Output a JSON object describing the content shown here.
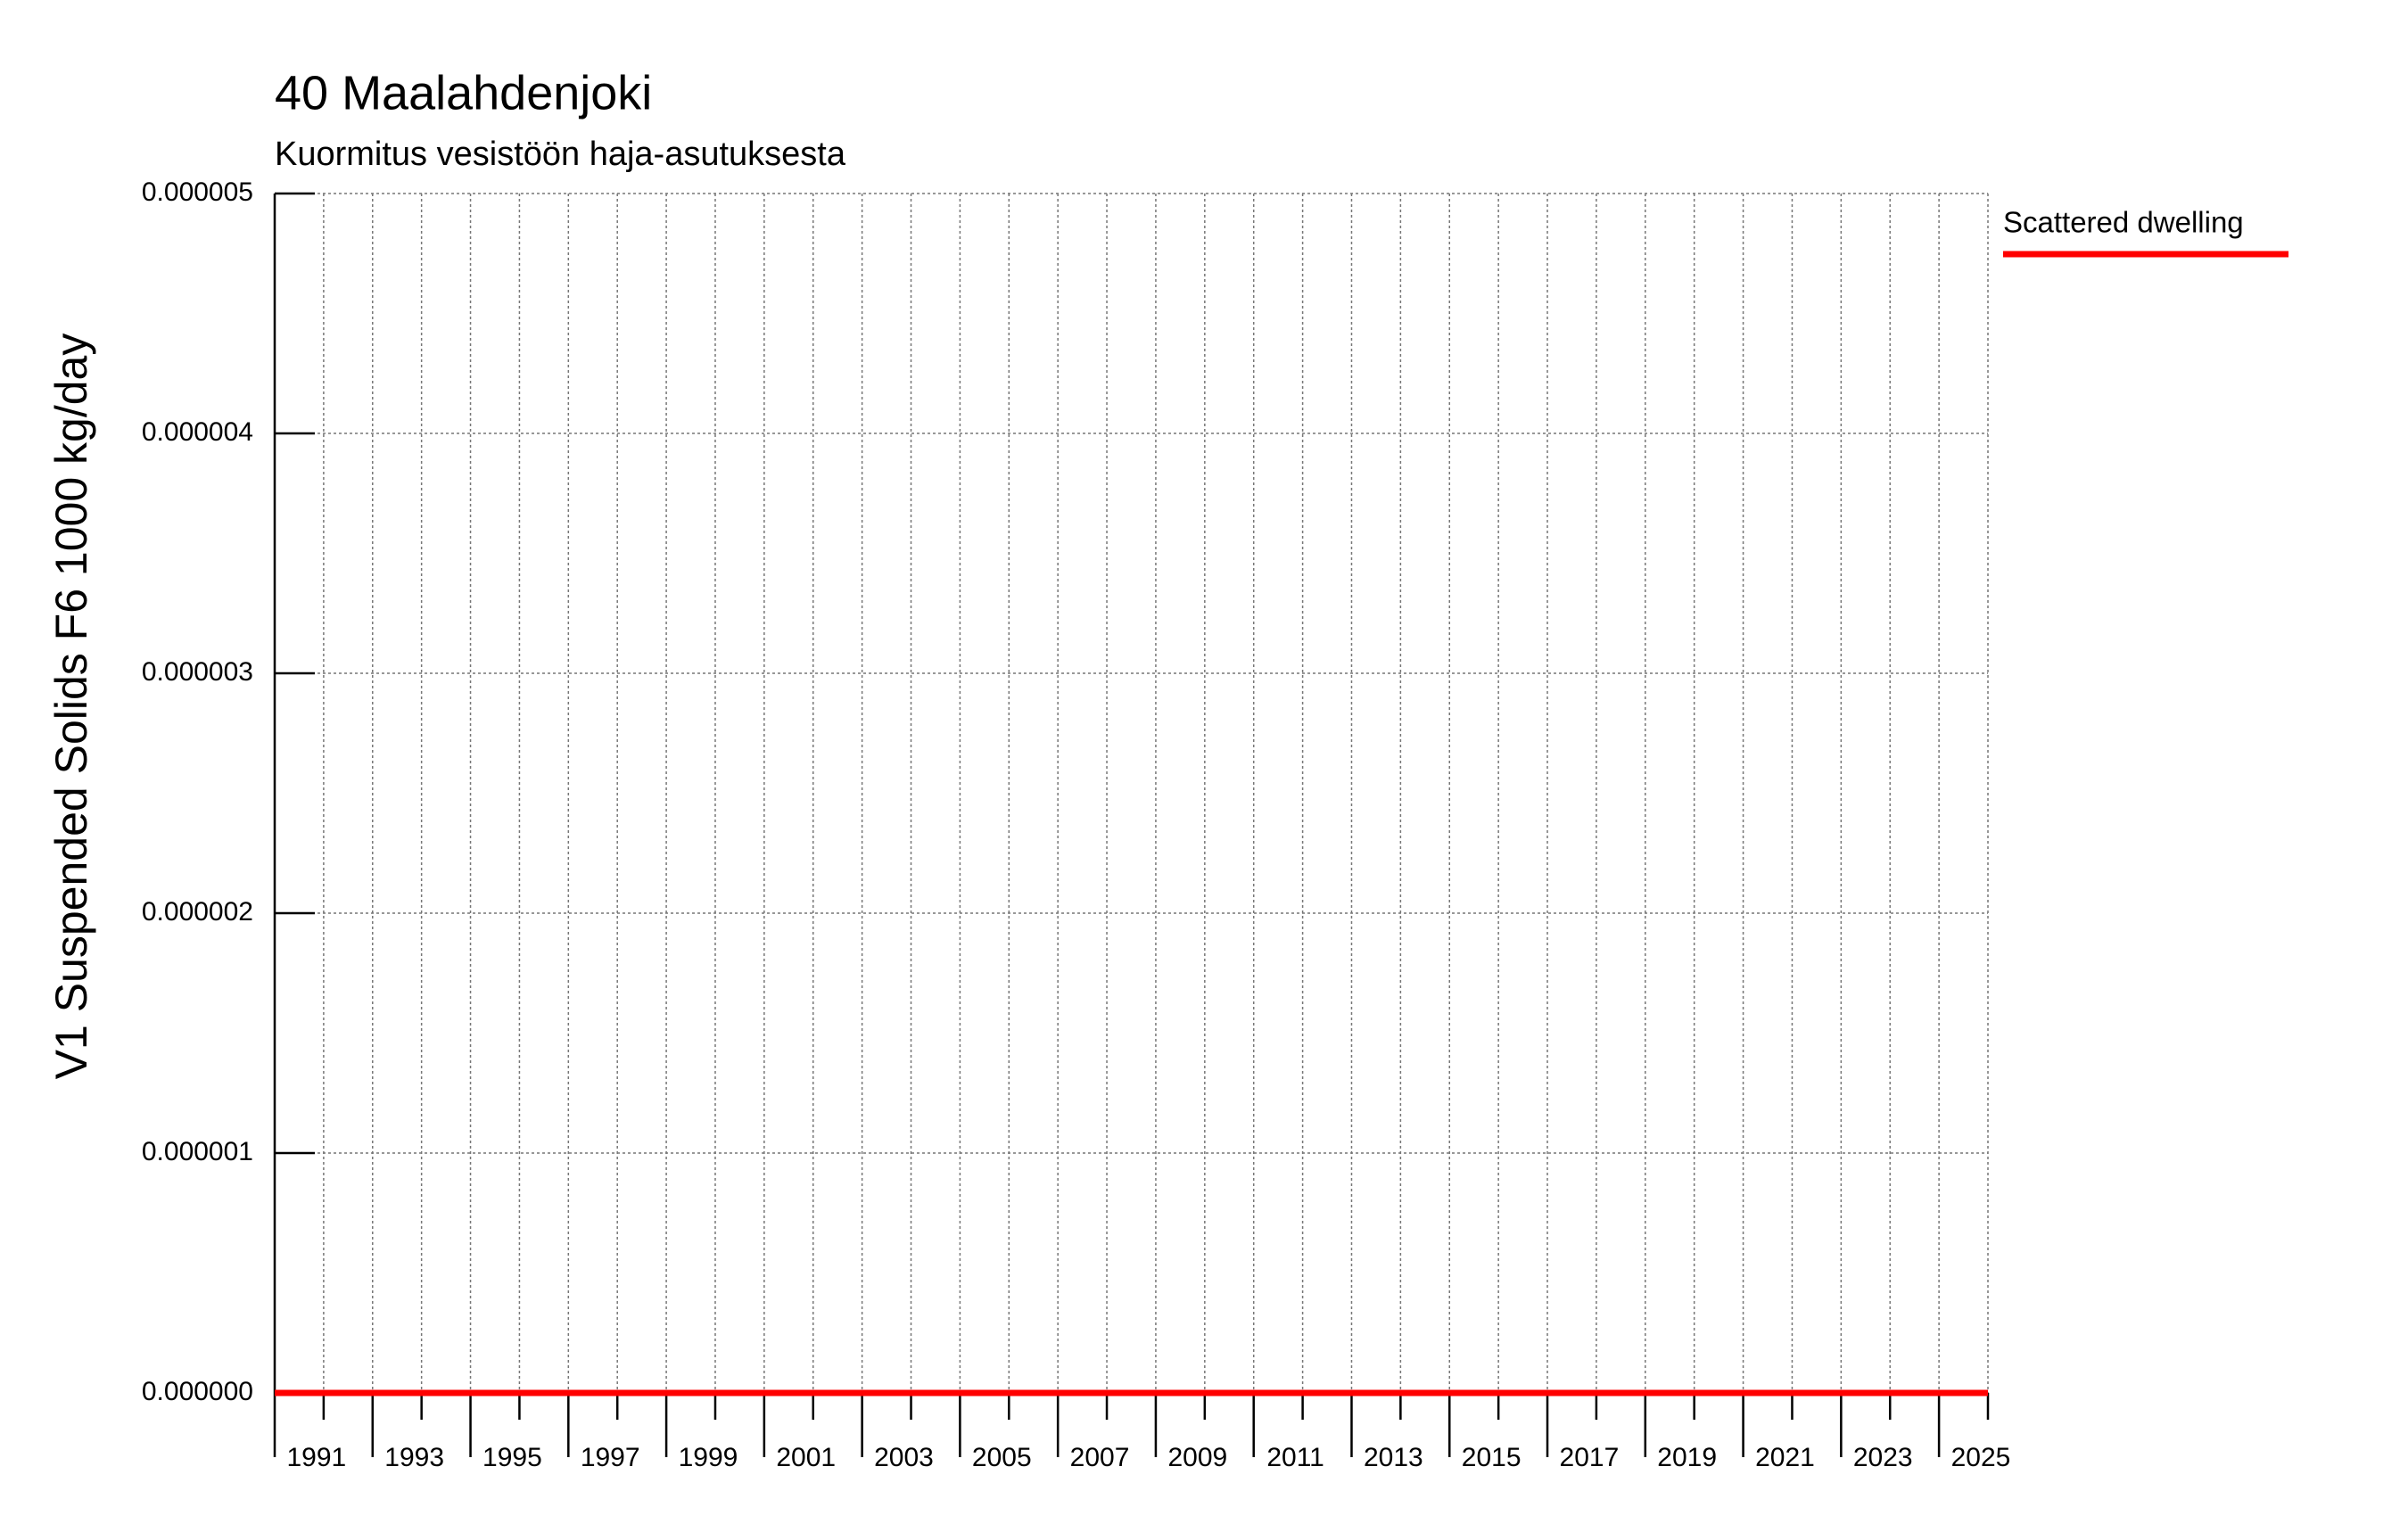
{
  "chart_data": {
    "type": "line",
    "title": "40 Maalahdenjoki",
    "subtitle": "Kuormitus vesistöön haja-asutuksesta",
    "y_label": "V1 Suspended Solids F6 1000 kg/day",
    "x": [
      1990,
      2025
    ],
    "series": [
      {
        "name": "Scattered dwelling",
        "color": "#ff0000",
        "values": [
          0,
          0
        ]
      }
    ],
    "xlim": [
      1990,
      2025
    ],
    "xticks": [
      1991,
      1993,
      1995,
      1997,
      1999,
      2001,
      2003,
      2005,
      2007,
      2009,
      2011,
      2013,
      2015,
      2017,
      2019,
      2021,
      2023,
      2025
    ],
    "minor_xticks": [
      1990,
      1992,
      1994,
      1996,
      1998,
      2000,
      2002,
      2004,
      2006,
      2008,
      2010,
      2012,
      2014,
      2016,
      2018,
      2020,
      2022,
      2024
    ],
    "ylim": [
      0,
      5e-06
    ],
    "yticks": [
      {
        "value": 0,
        "label": "0.000000"
      },
      {
        "value": 1e-06,
        "label": "0.000001"
      },
      {
        "value": 2e-06,
        "label": "0.000002"
      },
      {
        "value": 3e-06,
        "label": "0.000003"
      },
      {
        "value": 4e-06,
        "label": "0.000004"
      },
      {
        "value": 5e-06,
        "label": "0.000005"
      }
    ],
    "grid": true,
    "legend": "right"
  }
}
